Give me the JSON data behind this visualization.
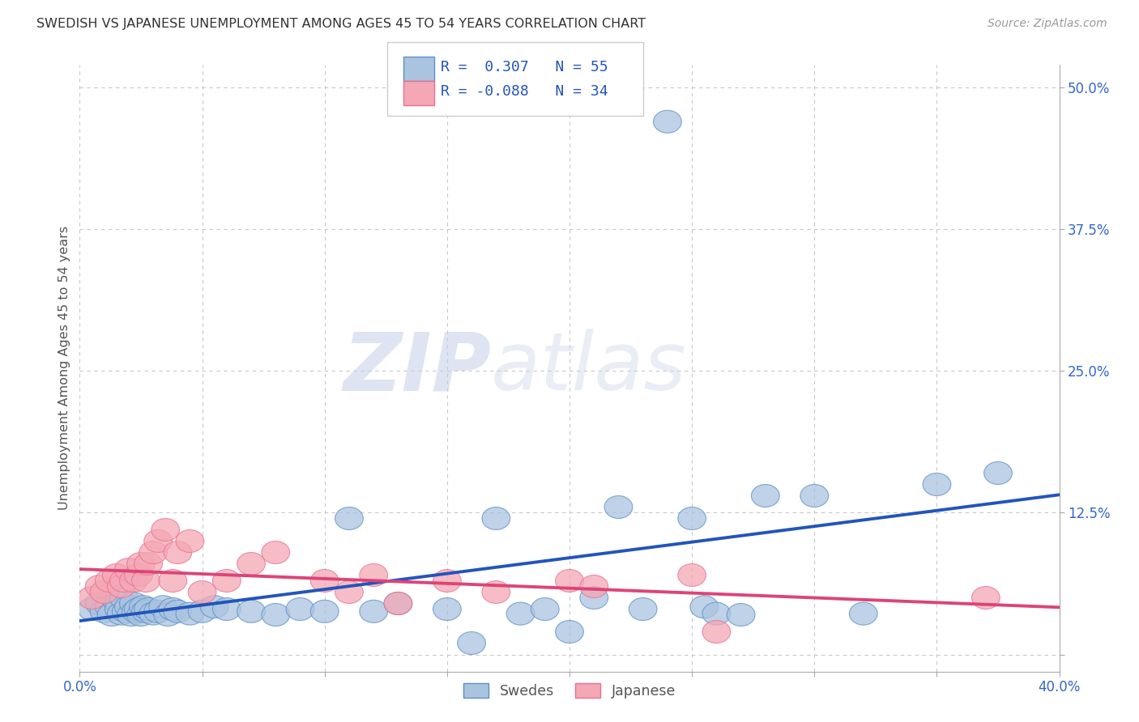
{
  "title": "SWEDISH VS JAPANESE UNEMPLOYMENT AMONG AGES 45 TO 54 YEARS CORRELATION CHART",
  "source": "Source: ZipAtlas.com",
  "ylabel": "Unemployment Among Ages 45 to 54 years",
  "xlim": [
    0.0,
    0.4
  ],
  "ylim": [
    -0.015,
    0.52
  ],
  "xticks": [
    0.0,
    0.05,
    0.1,
    0.15,
    0.2,
    0.25,
    0.3,
    0.35,
    0.4
  ],
  "xticklabels": [
    "0.0%",
    "",
    "",
    "",
    "",
    "",
    "",
    "",
    "40.0%"
  ],
  "yticks": [
    0.0,
    0.125,
    0.25,
    0.375,
    0.5
  ],
  "yticklabels": [
    "",
    "12.5%",
    "25.0%",
    "37.5%",
    "50.0%"
  ],
  "grid_color": "#c8c8c8",
  "background_color": "#ffffff",
  "swedes_color": "#aac4e0",
  "japanese_color": "#f4a7b5",
  "swedes_edge_color": "#5b8fc9",
  "japanese_edge_color": "#e87090",
  "swedes_line_color": "#2255bb",
  "japanese_line_color": "#dd4477",
  "watermark_zip": "ZIP",
  "watermark_atlas": "atlas",
  "swedes_x": [
    0.005,
    0.008,
    0.01,
    0.012,
    0.013,
    0.015,
    0.016,
    0.017,
    0.018,
    0.019,
    0.02,
    0.021,
    0.022,
    0.023,
    0.024,
    0.025,
    0.026,
    0.027,
    0.028,
    0.03,
    0.032,
    0.034,
    0.036,
    0.038,
    0.04,
    0.045,
    0.05,
    0.055,
    0.06,
    0.07,
    0.08,
    0.09,
    0.1,
    0.11,
    0.12,
    0.13,
    0.15,
    0.16,
    0.17,
    0.18,
    0.19,
    0.2,
    0.21,
    0.22,
    0.23,
    0.24,
    0.25,
    0.255,
    0.26,
    0.27,
    0.28,
    0.3,
    0.32,
    0.35,
    0.375
  ],
  "swedes_y": [
    0.04,
    0.045,
    0.038,
    0.042,
    0.035,
    0.048,
    0.04,
    0.036,
    0.05,
    0.038,
    0.042,
    0.035,
    0.045,
    0.038,
    0.04,
    0.035,
    0.042,
    0.038,
    0.04,
    0.036,
    0.038,
    0.042,
    0.035,
    0.04,
    0.038,
    0.036,
    0.038,
    0.042,
    0.04,
    0.038,
    0.035,
    0.04,
    0.038,
    0.12,
    0.038,
    0.045,
    0.04,
    0.01,
    0.12,
    0.036,
    0.04,
    0.02,
    0.05,
    0.13,
    0.04,
    0.47,
    0.12,
    0.042,
    0.036,
    0.035,
    0.14,
    0.14,
    0.036,
    0.15,
    0.16
  ],
  "japanese_x": [
    0.005,
    0.008,
    0.01,
    0.012,
    0.015,
    0.017,
    0.018,
    0.02,
    0.022,
    0.024,
    0.025,
    0.027,
    0.028,
    0.03,
    0.032,
    0.035,
    0.038,
    0.04,
    0.045,
    0.05,
    0.06,
    0.07,
    0.08,
    0.1,
    0.11,
    0.12,
    0.13,
    0.15,
    0.17,
    0.2,
    0.21,
    0.25,
    0.26,
    0.37
  ],
  "japanese_y": [
    0.05,
    0.06,
    0.055,
    0.065,
    0.07,
    0.06,
    0.065,
    0.075,
    0.065,
    0.07,
    0.08,
    0.065,
    0.08,
    0.09,
    0.1,
    0.11,
    0.065,
    0.09,
    0.1,
    0.055,
    0.065,
    0.08,
    0.09,
    0.065,
    0.055,
    0.07,
    0.045,
    0.065,
    0.055,
    0.065,
    0.06,
    0.07,
    0.02,
    0.05
  ]
}
